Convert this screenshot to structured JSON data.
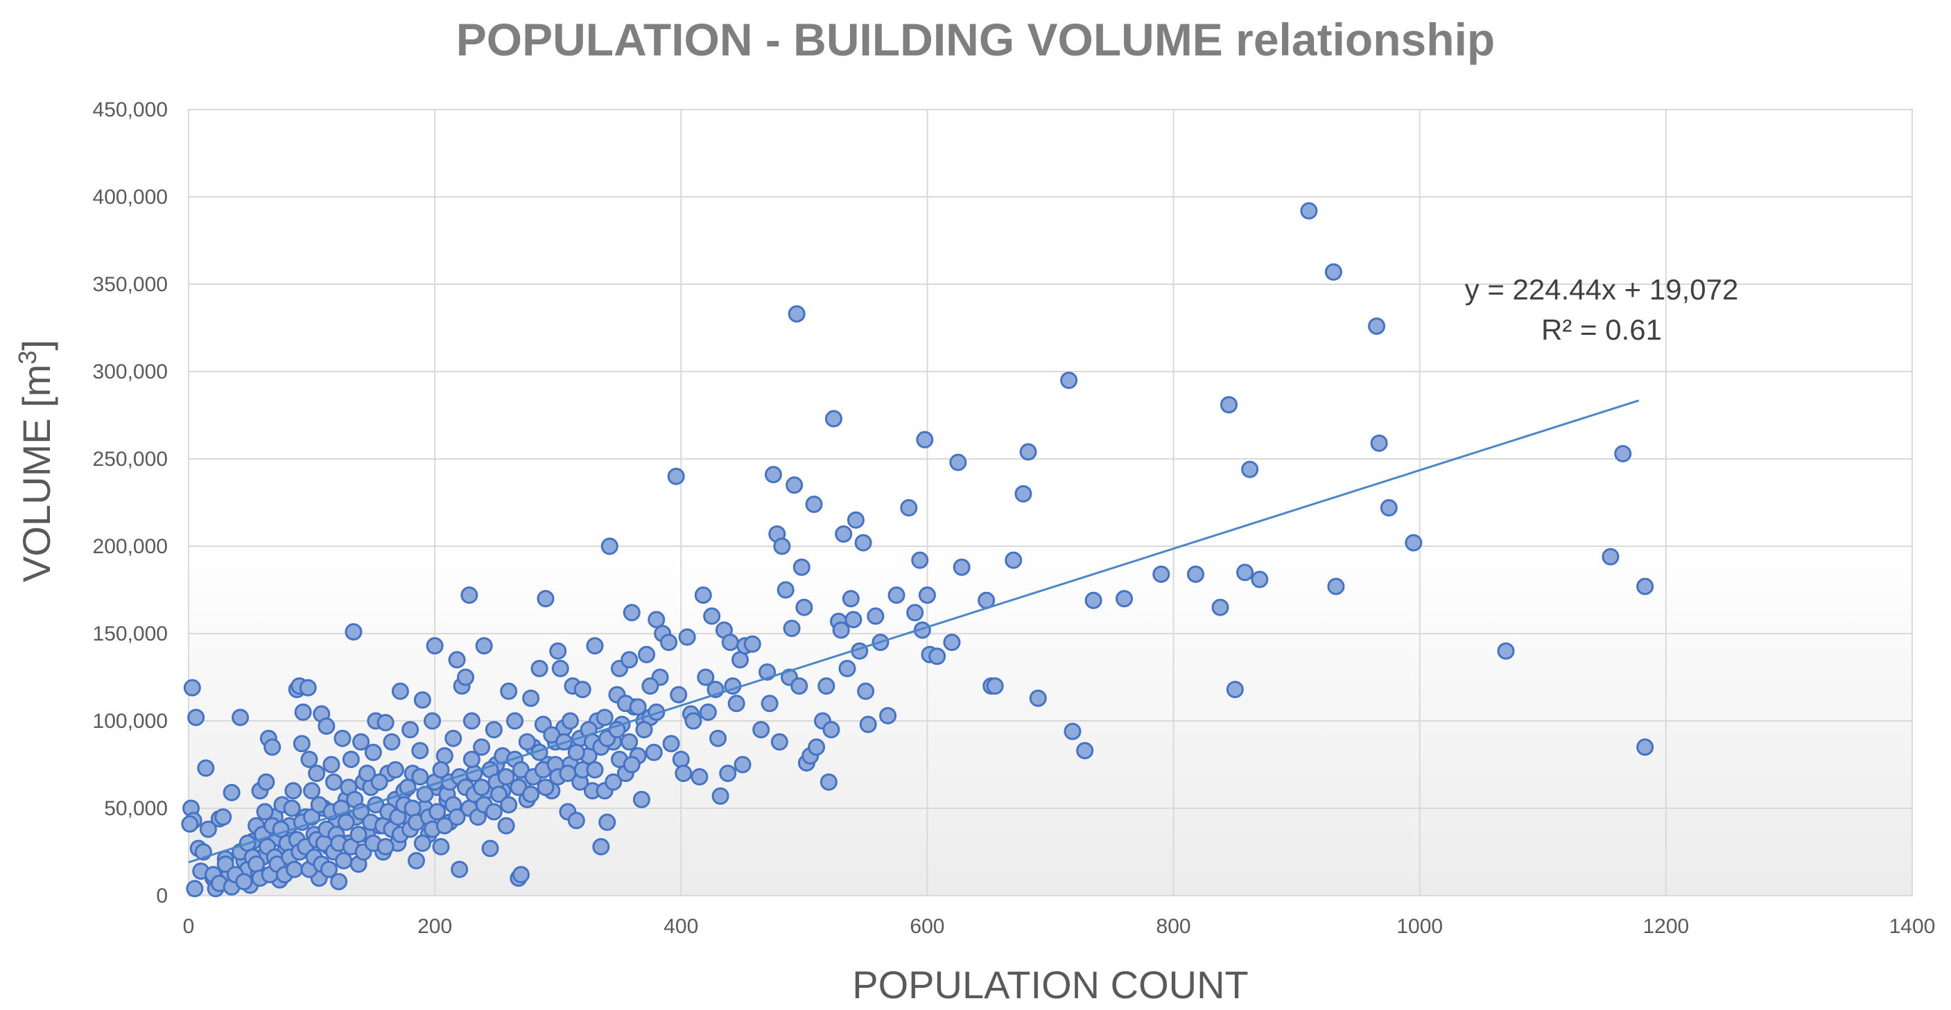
{
  "chart_data": {
    "type": "scatter",
    "title": "POPULATION - BUILDING VOLUME relationship",
    "xlabel": "POPULATION COUNT",
    "ylabel_text": "VOLUME [m",
    "ylabel_sup": "3",
    "ylabel_close": "]",
    "xlim": [
      0,
      1400
    ],
    "ylim": [
      0,
      450000
    ],
    "x_ticks": [
      0,
      200,
      400,
      600,
      800,
      1000,
      1200,
      1400
    ],
    "x_tick_labels": [
      "0",
      "200",
      "400",
      "600",
      "800",
      "1000",
      "1200",
      "1400"
    ],
    "y_ticks": [
      0,
      50000,
      100000,
      150000,
      200000,
      250000,
      300000,
      350000,
      400000,
      450000
    ],
    "y_tick_labels": [
      "0",
      "50,000",
      "100,000",
      "150,000",
      "200,000",
      "250,000",
      "300,000",
      "350,000",
      "400,000",
      "450,000"
    ],
    "grid": true,
    "legend": "none",
    "colors": {
      "point_fill": "#8fabdc",
      "point_stroke": "#4472c4",
      "trend": "#4a86c8",
      "grid": "#d9d9d9",
      "axis": "#bfbfbf"
    },
    "trendline": {
      "slope": 224.44,
      "intercept": 19072,
      "x_range": [
        0,
        1178
      ],
      "equation": "y = 224.44x + 19,072",
      "r2": "R² = 0.61"
    },
    "points": [
      [
        3,
        119000
      ],
      [
        6,
        102000
      ],
      [
        2,
        50000
      ],
      [
        4,
        43000
      ],
      [
        1,
        41000
      ],
      [
        8,
        27000
      ],
      [
        12,
        25000
      ],
      [
        10,
        14000
      ],
      [
        5,
        4000
      ],
      [
        14,
        73000
      ],
      [
        16,
        38000
      ],
      [
        20,
        10000
      ],
      [
        22,
        4000
      ],
      [
        25,
        44000
      ],
      [
        28,
        45000
      ],
      [
        30,
        21000
      ],
      [
        33,
        13000
      ],
      [
        35,
        59000
      ],
      [
        40,
        9000
      ],
      [
        42,
        102000
      ],
      [
        45,
        20000
      ],
      [
        48,
        15000
      ],
      [
        50,
        6000
      ],
      [
        52,
        31000
      ],
      [
        55,
        40000
      ],
      [
        57,
        13000
      ],
      [
        58,
        60000
      ],
      [
        60,
        22000
      ],
      [
        63,
        65000
      ],
      [
        65,
        90000
      ],
      [
        68,
        85000
      ],
      [
        70,
        45000
      ],
      [
        72,
        33000
      ],
      [
        74,
        9000
      ],
      [
        76,
        52000
      ],
      [
        78,
        25000
      ],
      [
        80,
        16000
      ],
      [
        82,
        40000
      ],
      [
        85,
        60000
      ],
      [
        88,
        118000
      ],
      [
        90,
        120000
      ],
      [
        92,
        87000
      ],
      [
        93,
        105000
      ],
      [
        95,
        45000
      ],
      [
        97,
        119000
      ],
      [
        98,
        78000
      ],
      [
        100,
        60000
      ],
      [
        102,
        35000
      ],
      [
        104,
        70000
      ],
      [
        106,
        10000
      ],
      [
        108,
        104000
      ],
      [
        110,
        50000
      ],
      [
        112,
        97000
      ],
      [
        114,
        28000
      ],
      [
        116,
        75000
      ],
      [
        118,
        65000
      ],
      [
        120,
        42000
      ],
      [
        122,
        8000
      ],
      [
        125,
        90000
      ],
      [
        128,
        55000
      ],
      [
        130,
        30000
      ],
      [
        132,
        78000
      ],
      [
        134,
        151000
      ],
      [
        136,
        45000
      ],
      [
        138,
        18000
      ],
      [
        140,
        88000
      ],
      [
        142,
        65000
      ],
      [
        145,
        35000
      ],
      [
        148,
        62000
      ],
      [
        150,
        82000
      ],
      [
        152,
        100000
      ],
      [
        155,
        40000
      ],
      [
        158,
        25000
      ],
      [
        160,
        99000
      ],
      [
        162,
        70000
      ],
      [
        165,
        88000
      ],
      [
        168,
        55000
      ],
      [
        170,
        30000
      ],
      [
        172,
        117000
      ],
      [
        175,
        60000
      ],
      [
        178,
        45000
      ],
      [
        180,
        95000
      ],
      [
        182,
        70000
      ],
      [
        185,
        20000
      ],
      [
        188,
        83000
      ],
      [
        190,
        112000
      ],
      [
        192,
        50000
      ],
      [
        195,
        35000
      ],
      [
        198,
        100000
      ],
      [
        200,
        143000
      ],
      [
        202,
        62000
      ],
      [
        205,
        28000
      ],
      [
        208,
        80000
      ],
      [
        210,
        55000
      ],
      [
        212,
        42000
      ],
      [
        215,
        90000
      ],
      [
        218,
        135000
      ],
      [
        220,
        15000
      ],
      [
        222,
        120000
      ],
      [
        225,
        125000
      ],
      [
        228,
        172000
      ],
      [
        230,
        100000
      ],
      [
        232,
        70000
      ],
      [
        235,
        50000
      ],
      [
        238,
        85000
      ],
      [
        240,
        143000
      ],
      [
        242,
        60000
      ],
      [
        245,
        27000
      ],
      [
        248,
        95000
      ],
      [
        250,
        75000
      ],
      [
        255,
        60000
      ],
      [
        258,
        40000
      ],
      [
        260,
        117000
      ],
      [
        265,
        100000
      ],
      [
        268,
        10000
      ],
      [
        270,
        12000
      ],
      [
        272,
        65000
      ],
      [
        275,
        55000
      ],
      [
        278,
        113000
      ],
      [
        280,
        85000
      ],
      [
        285,
        130000
      ],
      [
        288,
        98000
      ],
      [
        290,
        170000
      ],
      [
        292,
        75000
      ],
      [
        295,
        60000
      ],
      [
        298,
        88000
      ],
      [
        300,
        140000
      ],
      [
        302,
        130000
      ],
      [
        305,
        96000
      ],
      [
        308,
        48000
      ],
      [
        310,
        75000
      ],
      [
        312,
        120000
      ],
      [
        315,
        43000
      ],
      [
        318,
        90000
      ],
      [
        320,
        118000
      ],
      [
        325,
        80000
      ],
      [
        328,
        60000
      ],
      [
        330,
        143000
      ],
      [
        332,
        100000
      ],
      [
        335,
        28000
      ],
      [
        338,
        60000
      ],
      [
        340,
        42000
      ],
      [
        342,
        200000
      ],
      [
        345,
        88000
      ],
      [
        348,
        115000
      ],
      [
        350,
        130000
      ],
      [
        352,
        98000
      ],
      [
        355,
        70000
      ],
      [
        358,
        135000
      ],
      [
        360,
        162000
      ],
      [
        362,
        108000
      ],
      [
        365,
        80000
      ],
      [
        368,
        55000
      ],
      [
        370,
        100000
      ],
      [
        372,
        138000
      ],
      [
        375,
        102000
      ],
      [
        378,
        82000
      ],
      [
        380,
        158000
      ],
      [
        383,
        125000
      ],
      [
        385,
        150000
      ],
      [
        390,
        145000
      ],
      [
        392,
        87000
      ],
      [
        396,
        240000
      ],
      [
        398,
        115000
      ],
      [
        400,
        78000
      ],
      [
        402,
        70000
      ],
      [
        405,
        148000
      ],
      [
        408,
        104000
      ],
      [
        410,
        100000
      ],
      [
        415,
        68000
      ],
      [
        418,
        172000
      ],
      [
        420,
        125000
      ],
      [
        422,
        105000
      ],
      [
        425,
        160000
      ],
      [
        428,
        118000
      ],
      [
        430,
        90000
      ],
      [
        432,
        57000
      ],
      [
        435,
        152000
      ],
      [
        438,
        70000
      ],
      [
        440,
        145000
      ],
      [
        442,
        120000
      ],
      [
        445,
        110000
      ],
      [
        448,
        135000
      ],
      [
        450,
        75000
      ],
      [
        452,
        143000
      ],
      [
        458,
        144000
      ],
      [
        465,
        95000
      ],
      [
        470,
        128000
      ],
      [
        472,
        110000
      ],
      [
        475,
        241000
      ],
      [
        478,
        207000
      ],
      [
        480,
        88000
      ],
      [
        482,
        200000
      ],
      [
        485,
        175000
      ],
      [
        488,
        125000
      ],
      [
        490,
        153000
      ],
      [
        492,
        235000
      ],
      [
        494,
        333000
      ],
      [
        496,
        120000
      ],
      [
        498,
        188000
      ],
      [
        500,
        165000
      ],
      [
        502,
        76000
      ],
      [
        505,
        80000
      ],
      [
        508,
        224000
      ],
      [
        510,
        85000
      ],
      [
        515,
        100000
      ],
      [
        518,
        120000
      ],
      [
        520,
        65000
      ],
      [
        522,
        95000
      ],
      [
        524,
        273000
      ],
      [
        528,
        157000
      ],
      [
        530,
        152000
      ],
      [
        532,
        207000
      ],
      [
        535,
        130000
      ],
      [
        538,
        170000
      ],
      [
        540,
        158000
      ],
      [
        542,
        215000
      ],
      [
        545,
        140000
      ],
      [
        548,
        202000
      ],
      [
        550,
        117000
      ],
      [
        552,
        98000
      ],
      [
        558,
        160000
      ],
      [
        562,
        145000
      ],
      [
        568,
        103000
      ],
      [
        575,
        172000
      ],
      [
        585,
        222000
      ],
      [
        590,
        162000
      ],
      [
        594,
        192000
      ],
      [
        596,
        152000
      ],
      [
        598,
        261000
      ],
      [
        600,
        172000
      ],
      [
        602,
        138000
      ],
      [
        608,
        137000
      ],
      [
        620,
        145000
      ],
      [
        625,
        248000
      ],
      [
        628,
        188000
      ],
      [
        648,
        169000
      ],
      [
        652,
        120000
      ],
      [
        655,
        120000
      ],
      [
        670,
        192000
      ],
      [
        678,
        230000
      ],
      [
        682,
        254000
      ],
      [
        690,
        113000
      ],
      [
        715,
        295000
      ],
      [
        718,
        94000
      ],
      [
        728,
        83000
      ],
      [
        735,
        169000
      ],
      [
        760,
        170000
      ],
      [
        790,
        184000
      ],
      [
        818,
        184000
      ],
      [
        838,
        165000
      ],
      [
        845,
        281000
      ],
      [
        850,
        118000
      ],
      [
        858,
        185000
      ],
      [
        862,
        244000
      ],
      [
        870,
        181000
      ],
      [
        910,
        392000
      ],
      [
        930,
        357000
      ],
      [
        932,
        177000
      ],
      [
        965,
        326000
      ],
      [
        967,
        259000
      ],
      [
        975,
        222000
      ],
      [
        995,
        202000
      ],
      [
        1070,
        140000
      ],
      [
        1155,
        194000
      ],
      [
        1165,
        253000
      ],
      [
        1183,
        177000
      ],
      [
        1183,
        85000
      ],
      [
        20,
        12000
      ],
      [
        25,
        7000
      ],
      [
        30,
        18000
      ],
      [
        35,
        5000
      ],
      [
        38,
        12000
      ],
      [
        42,
        25000
      ],
      [
        45,
        8000
      ],
      [
        48,
        30000
      ],
      [
        52,
        22000
      ],
      [
        55,
        18000
      ],
      [
        58,
        10000
      ],
      [
        60,
        35000
      ],
      [
        62,
        48000
      ],
      [
        64,
        28000
      ],
      [
        66,
        12000
      ],
      [
        68,
        40000
      ],
      [
        70,
        22000
      ],
      [
        72,
        18000
      ],
      [
        75,
        38000
      ],
      [
        78,
        12000
      ],
      [
        80,
        30000
      ],
      [
        82,
        22000
      ],
      [
        84,
        50000
      ],
      [
        86,
        15000
      ],
      [
        88,
        32000
      ],
      [
        90,
        25000
      ],
      [
        92,
        42000
      ],
      [
        95,
        28000
      ],
      [
        98,
        15000
      ],
      [
        100,
        45000
      ],
      [
        102,
        22000
      ],
      [
        104,
        32000
      ],
      [
        106,
        52000
      ],
      [
        108,
        18000
      ],
      [
        110,
        30000
      ],
      [
        112,
        38000
      ],
      [
        114,
        15000
      ],
      [
        116,
        48000
      ],
      [
        118,
        25000
      ],
      [
        120,
        35000
      ],
      [
        122,
        30000
      ],
      [
        124,
        50000
      ],
      [
        126,
        20000
      ],
      [
        128,
        42000
      ],
      [
        130,
        62000
      ],
      [
        132,
        28000
      ],
      [
        135,
        55000
      ],
      [
        138,
        35000
      ],
      [
        140,
        48000
      ],
      [
        142,
        25000
      ],
      [
        145,
        70000
      ],
      [
        148,
        42000
      ],
      [
        150,
        30000
      ],
      [
        152,
        52000
      ],
      [
        155,
        65000
      ],
      [
        158,
        40000
      ],
      [
        160,
        28000
      ],
      [
        162,
        48000
      ],
      [
        165,
        38000
      ],
      [
        168,
        72000
      ],
      [
        170,
        45000
      ],
      [
        172,
        35000
      ],
      [
        175,
        52000
      ],
      [
        178,
        62000
      ],
      [
        180,
        38000
      ],
      [
        182,
        50000
      ],
      [
        185,
        42000
      ],
      [
        188,
        68000
      ],
      [
        190,
        30000
      ],
      [
        192,
        58000
      ],
      [
        195,
        45000
      ],
      [
        198,
        38000
      ],
      [
        200,
        65000
      ],
      [
        202,
        48000
      ],
      [
        205,
        72000
      ],
      [
        208,
        40000
      ],
      [
        210,
        58000
      ],
      [
        212,
        65000
      ],
      [
        215,
        52000
      ],
      [
        218,
        45000
      ],
      [
        220,
        68000
      ],
      [
        225,
        62000
      ],
      [
        228,
        50000
      ],
      [
        230,
        78000
      ],
      [
        232,
        58000
      ],
      [
        235,
        45000
      ],
      [
        238,
        62000
      ],
      [
        240,
        52000
      ],
      [
        245,
        72000
      ],
      [
        248,
        48000
      ],
      [
        250,
        65000
      ],
      [
        252,
        58000
      ],
      [
        255,
        80000
      ],
      [
        258,
        68000
      ],
      [
        260,
        52000
      ],
      [
        265,
        78000
      ],
      [
        268,
        62000
      ],
      [
        270,
        72000
      ],
      [
        275,
        88000
      ],
      [
        278,
        58000
      ],
      [
        280,
        68000
      ],
      [
        285,
        82000
      ],
      [
        288,
        72000
      ],
      [
        290,
        62000
      ],
      [
        295,
        92000
      ],
      [
        298,
        75000
      ],
      [
        300,
        68000
      ],
      [
        305,
        88000
      ],
      [
        308,
        70000
      ],
      [
        310,
        100000
      ],
      [
        315,
        82000
      ],
      [
        318,
        65000
      ],
      [
        320,
        72000
      ],
      [
        325,
        95000
      ],
      [
        328,
        88000
      ],
      [
        330,
        72000
      ],
      [
        335,
        85000
      ],
      [
        338,
        102000
      ],
      [
        340,
        90000
      ],
      [
        345,
        65000
      ],
      [
        348,
        95000
      ],
      [
        350,
        78000
      ],
      [
        355,
        110000
      ],
      [
        358,
        88000
      ],
      [
        360,
        75000
      ],
      [
        365,
        108000
      ],
      [
        370,
        95000
      ],
      [
        375,
        120000
      ],
      [
        380,
        105000
      ]
    ]
  }
}
